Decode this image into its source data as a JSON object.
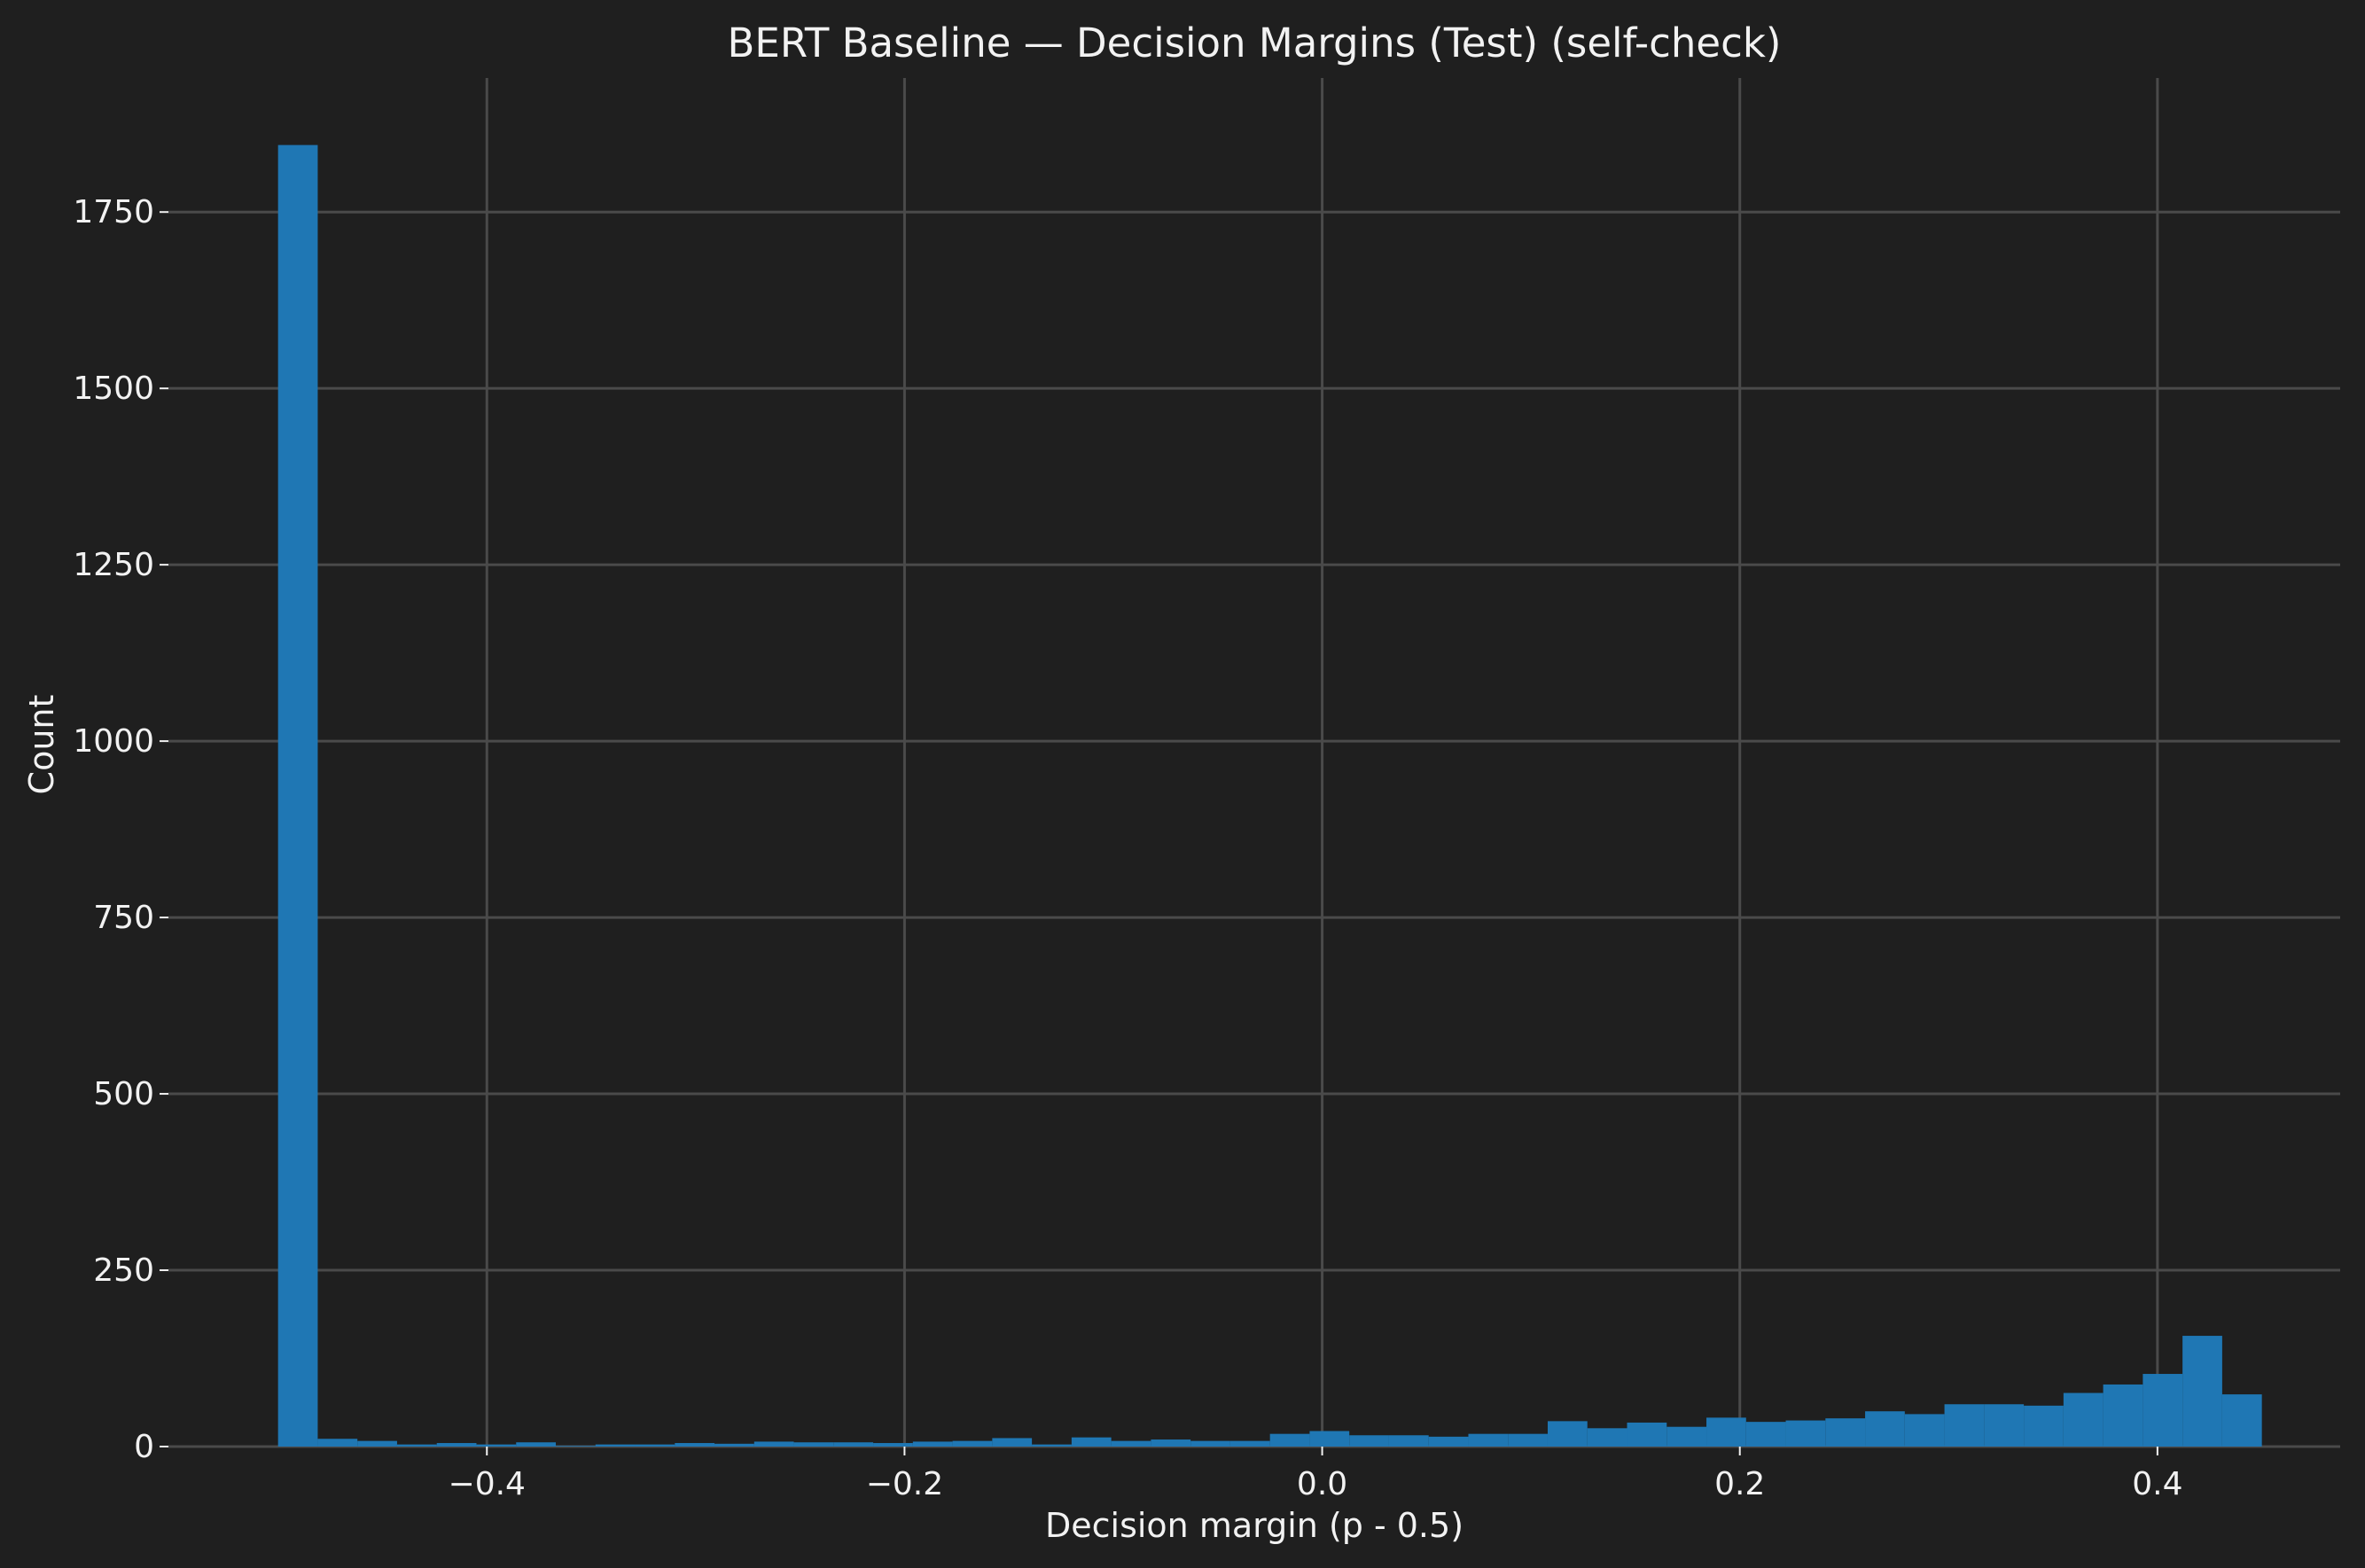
{
  "chart_data": {
    "type": "bar",
    "title": "BERT Baseline — Decision Margins (Test) (self-check)",
    "xlabel": "Decision margin (p - 0.5)",
    "ylabel": "Count",
    "xlim": [
      -0.5525,
      0.4875
    ],
    "ylim": [
      0,
      1940
    ],
    "x_ticks": [
      -0.4,
      -0.2,
      0.0,
      0.2,
      0.4
    ],
    "x_tick_labels": [
      "−0.4",
      "−0.2",
      "0.0",
      "0.2",
      "0.4"
    ],
    "y_ticks": [
      0,
      250,
      500,
      750,
      1000,
      1250,
      1500,
      1750
    ],
    "y_tick_labels": [
      "0",
      "250",
      "500",
      "750",
      "1000",
      "1250",
      "1500",
      "1750"
    ],
    "grid": true,
    "color": "#1f77b4",
    "bin_start": -0.5,
    "bin_width": 0.019,
    "values": [
      1845,
      11,
      8,
      3,
      5,
      3,
      6,
      1,
      3,
      3,
      5,
      4,
      7,
      6,
      6,
      5,
      7,
      8,
      12,
      3,
      13,
      8,
      10,
      8,
      8,
      18,
      22,
      16,
      16,
      14,
      18,
      18,
      36,
      26,
      34,
      28,
      41,
      35,
      37,
      40,
      50,
      46,
      60,
      60,
      58,
      76,
      88,
      103,
      157,
      74
    ]
  }
}
